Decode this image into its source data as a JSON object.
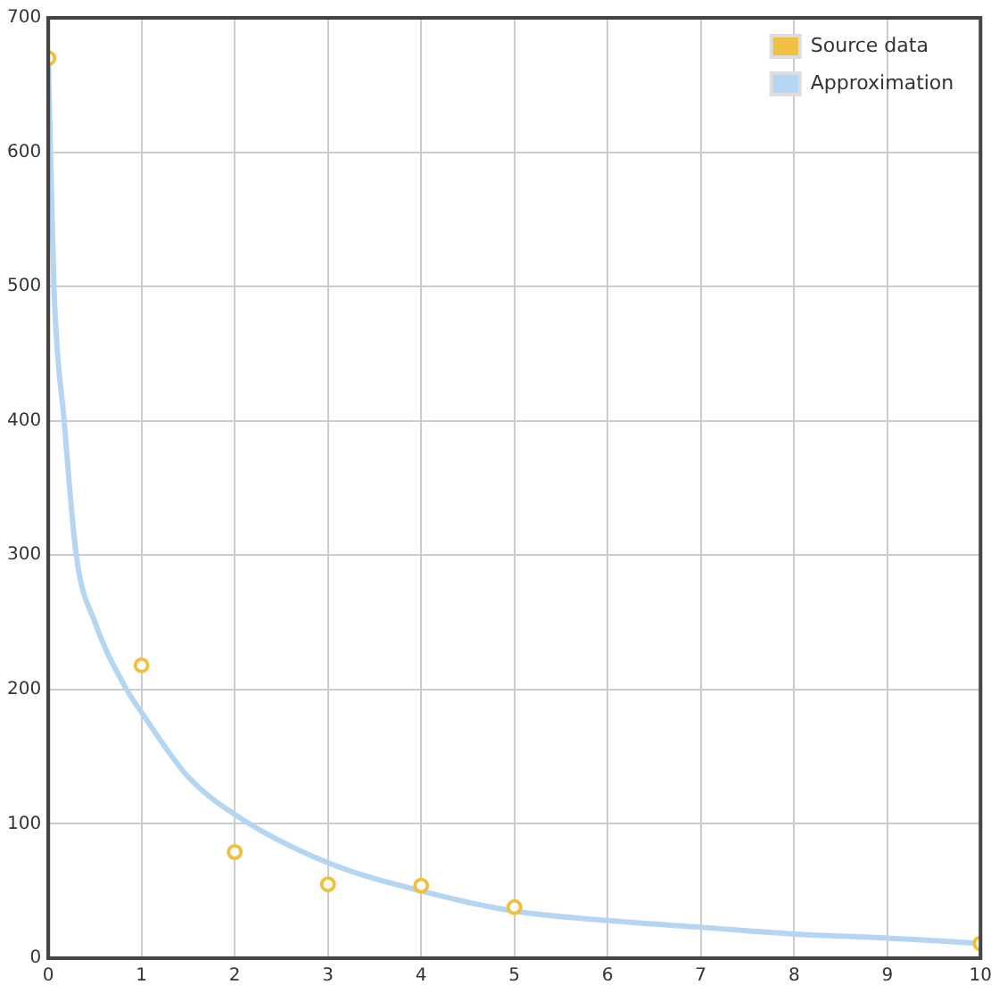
{
  "chart_data": {
    "type": "scatter",
    "xlim": [
      0,
      10
    ],
    "ylim": [
      0,
      700
    ],
    "xticks": [
      0,
      1,
      2,
      3,
      4,
      5,
      6,
      7,
      8,
      9,
      10
    ],
    "yticks": [
      0,
      100,
      200,
      300,
      400,
      500,
      600,
      700
    ],
    "grid": true,
    "legend": "top right",
    "marker": "circle",
    "series": [
      {
        "name": "Source data",
        "color": "#f0c040",
        "x": [
          0,
          1,
          2,
          3,
          4,
          5,
          10
        ],
        "values": [
          670,
          218,
          79,
          55,
          54,
          38,
          11
        ]
      },
      {
        "name": "Approximation",
        "type": "line",
        "marker": "none",
        "color": "#b4d6f2",
        "x": [
          0,
          0.06,
          0.17,
          0.3,
          0.5,
          0.84,
          1,
          1.5,
          2,
          3,
          4,
          5,
          6,
          7,
          8,
          9,
          10
        ],
        "values": [
          670,
          500,
          400,
          300,
          250,
          200,
          183,
          135,
          107,
          71,
          50,
          35,
          28,
          23,
          18,
          15,
          11
        ]
      }
    ]
  }
}
